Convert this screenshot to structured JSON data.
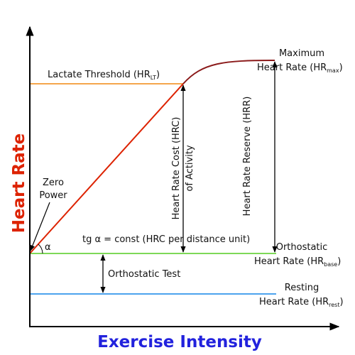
{
  "axes": {
    "x_title": "Exercise Intensity",
    "y_title": "Heart Rate",
    "x_title_color": "#2222dd",
    "y_title_color": "#dd2200"
  },
  "levels": {
    "lactate_threshold": {
      "text": "Lactate Threshold (HR",
      "sub": "LT",
      "close": ")",
      "color": "#f5a64c"
    },
    "orthostatic": {
      "line1": "Orthostatic",
      "line2": "Heart Rate (HR",
      "sub": "base",
      "close": ")",
      "color": "#7ed957"
    },
    "resting": {
      "line1": "Resting",
      "line2": "Heart Rate (HR",
      "sub": "rest",
      "close": ")",
      "color": "#4da3ee"
    },
    "maximum": {
      "line1": "Maximum",
      "line2": "Heart Rate (HR",
      "sub": "max",
      "close": ")"
    }
  },
  "curve": {
    "ramp_color": "#dd2200",
    "plateau_color": "#8b1a1a"
  },
  "annotations": {
    "zero_power": [
      "Zero",
      "Power"
    ],
    "alpha": "α",
    "tangent": "tg α = const (HRC per distance unit)",
    "hrc": [
      "Heart Rate Cost (HRC)",
      "of Activity"
    ],
    "hrr": "Heart Rate Reserve (HRR)",
    "orthostatic_test": "Orthostatic Test"
  }
}
